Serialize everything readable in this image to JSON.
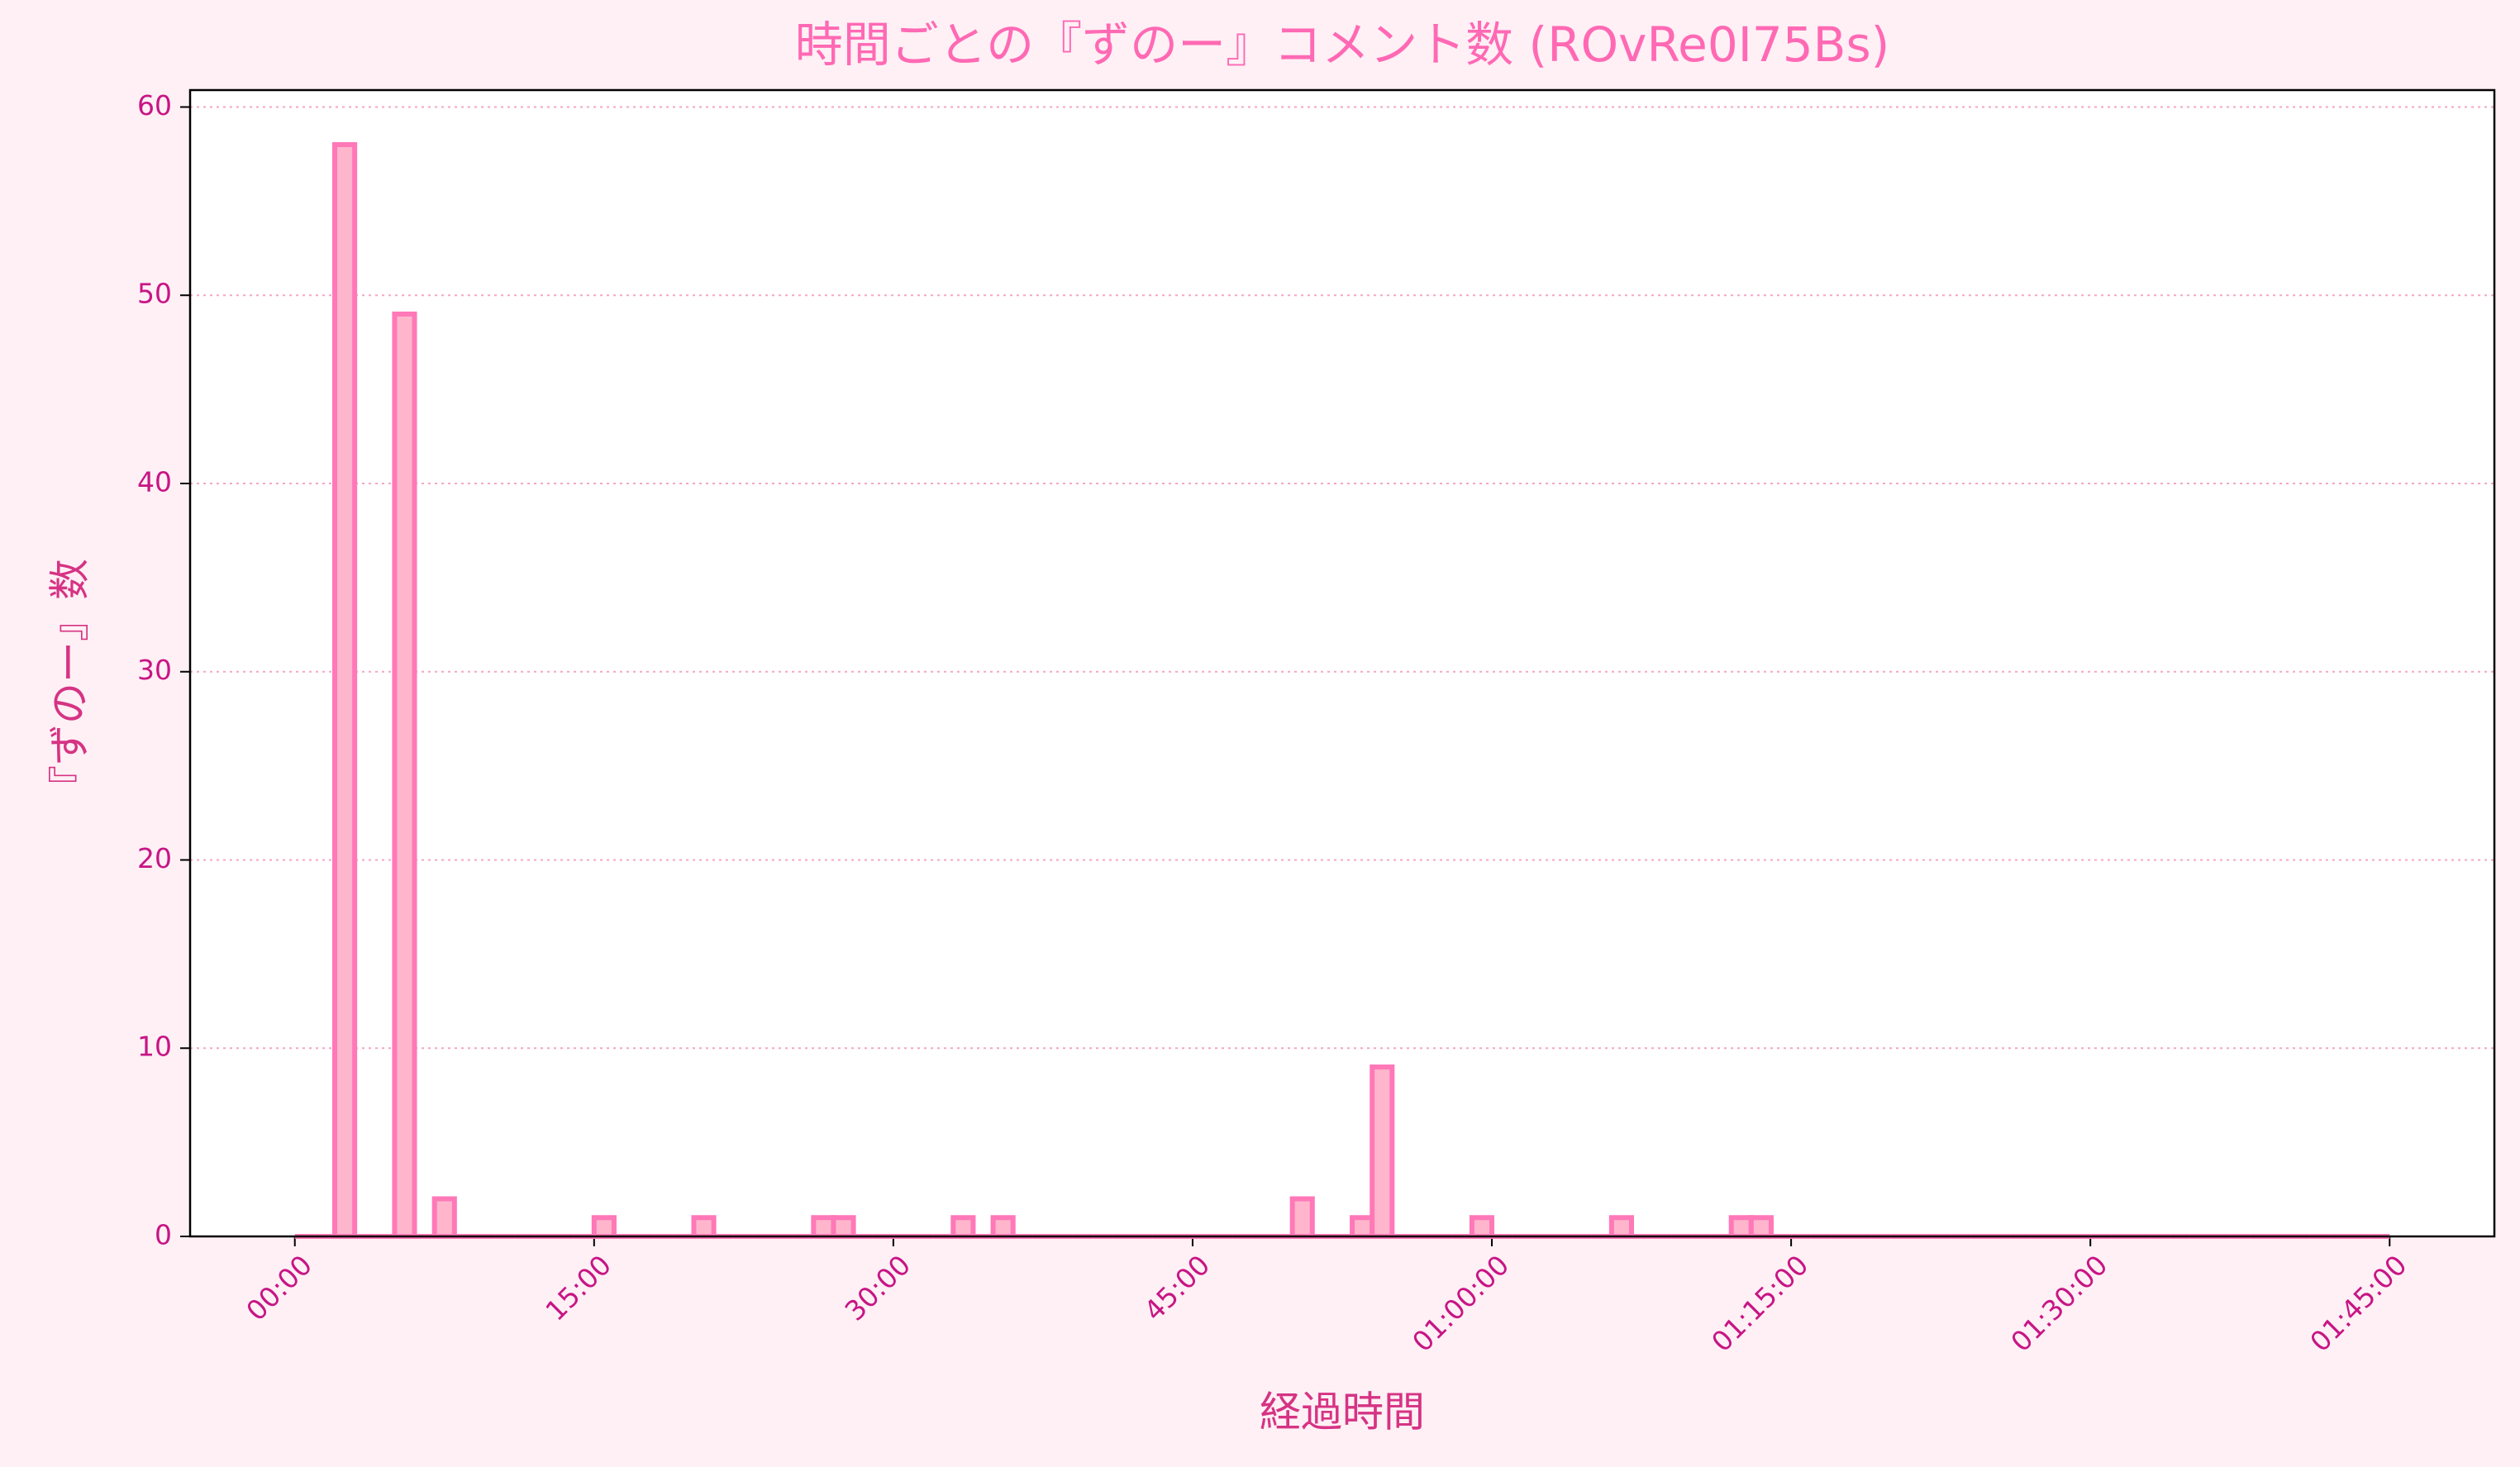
{
  "chart_data": {
    "type": "histogram",
    "title": "時間ごとの『ずのー』コメント数 (ROvRe0I75Bs)",
    "x_label": "経過時間",
    "y_label": "『ずのー』数",
    "bins": [
      0,
      1,
      2,
      3,
      4,
      5,
      6,
      7,
      8,
      9,
      10,
      11,
      12,
      13,
      14,
      15,
      16,
      17,
      18,
      19,
      20,
      21,
      22,
      23,
      24,
      25,
      26,
      27,
      28,
      29,
      30,
      31,
      32,
      33,
      34,
      35,
      36,
      37,
      38,
      39,
      40,
      41,
      42,
      43,
      44,
      45,
      46,
      47,
      48,
      49,
      50,
      51,
      52,
      53,
      54,
      55,
      56,
      57,
      58,
      59,
      60,
      61,
      62,
      63,
      64,
      65,
      66,
      67,
      68,
      69,
      70,
      71,
      72,
      73,
      74,
      75,
      76,
      77,
      78,
      79,
      80,
      81,
      82,
      83,
      84,
      85,
      86,
      87,
      88,
      89,
      90,
      91,
      92,
      93,
      94,
      95,
      96,
      97,
      98,
      99,
      100,
      101,
      102,
      103,
      104,
      105
    ],
    "counts": [
      0,
      0,
      58,
      0,
      0,
      49,
      0,
      2,
      0,
      0,
      0,
      0,
      0,
      0,
      0,
      1,
      0,
      0,
      0,
      0,
      1,
      0,
      0,
      0,
      0,
      0,
      1,
      1,
      0,
      0,
      0,
      0,
      0,
      1,
      0,
      1,
      0,
      0,
      0,
      0,
      0,
      0,
      0,
      0,
      0,
      0,
      0,
      0,
      0,
      0,
      2,
      0,
      0,
      1,
      9,
      0,
      0,
      0,
      0,
      1,
      0,
      0,
      0,
      0,
      0,
      0,
      1,
      0,
      0,
      0,
      0,
      0,
      1,
      1,
      0,
      0,
      0,
      0,
      0,
      0,
      0,
      0,
      0,
      0,
      0,
      0,
      0,
      0,
      0,
      0,
      0,
      0,
      0,
      0,
      0,
      0,
      0,
      0,
      0,
      0,
      0,
      0,
      0,
      0,
      0
    ],
    "fill_color": "#ffb6cc",
    "edge_color": "#ff78b8",
    "xlim": [
      -5.25,
      110.25
    ],
    "xticks": [
      {
        "value": 0,
        "label": "00:00"
      },
      {
        "value": 15,
        "label": "15:00"
      },
      {
        "value": 30,
        "label": "30:00"
      },
      {
        "value": 45,
        "label": "45:00"
      },
      {
        "value": 60,
        "label": "01:00:00"
      },
      {
        "value": 75,
        "label": "01:15:00"
      },
      {
        "value": 90,
        "label": "01:30:00"
      },
      {
        "value": 105,
        "label": "01:45:00"
      }
    ],
    "ylim": [
      0,
      60.9
    ],
    "yticks": [
      0,
      10,
      20,
      30,
      40,
      50,
      60
    ],
    "grid": true
  }
}
